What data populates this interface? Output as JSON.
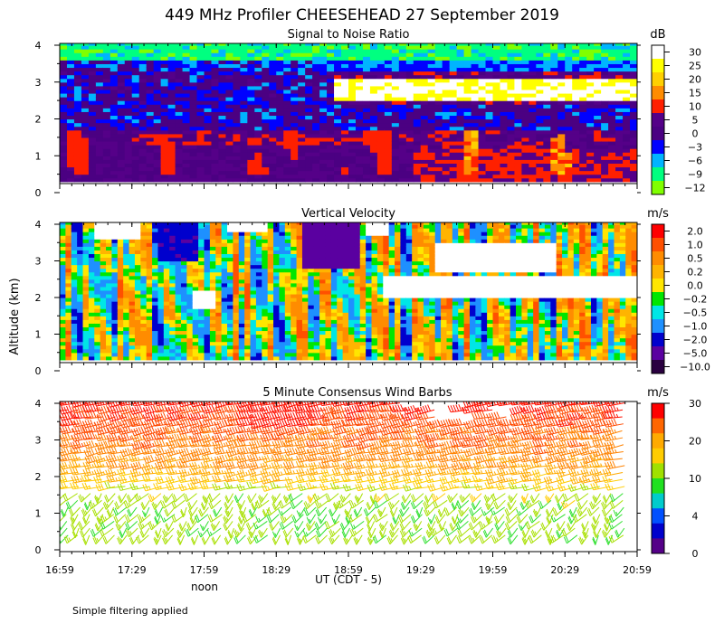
{
  "title": "449 MHz Profiler CHEESEHEAD 27 September 2019",
  "ylabel": "Altitude (km)",
  "xlabel": "UT  (CDT - 5)",
  "noon_label": "noon",
  "note": "Simple filtering applied",
  "x_ticks": [
    "16:59",
    "17:29",
    "17:59",
    "18:29",
    "18:59",
    "19:29",
    "19:59",
    "20:29",
    "20:59"
  ],
  "y_ticks": [
    "0",
    "1",
    "2",
    "3",
    "4"
  ],
  "chart_data": [
    {
      "type": "heatmap",
      "title": "Signal to Noise Ratio",
      "unit": "dB",
      "xlim": [
        "16:59",
        "20:59"
      ],
      "ylim": [
        0,
        4.1
      ],
      "y_data_range": [
        0.3,
        4.1
      ],
      "colorbar": {
        "labels": [
          "30",
          "25",
          "20",
          "15",
          "10",
          "5",
          "0",
          "−3",
          "−6",
          "−9",
          "−12"
        ],
        "colors": [
          "#ffffff",
          "#ffff00",
          "#ffd000",
          "#ff8c00",
          "#ff2000",
          "#550088",
          "#4b0082",
          "#0000ff",
          "#00b4ff",
          "#00ff80",
          "#80ff00"
        ]
      },
      "features": [
        {
          "layer": "0.3-1.6 km",
          "description": "mostly 0 to 5 dB with red/orange 10-15 dB plumes, increasing after 19:29"
        },
        {
          "layer": "1.6-2.3 km",
          "description": "-3 to 5 dB"
        },
        {
          "layer": "2.3-3.2 km after 19:29",
          "description": "white >30 dB layer"
        },
        {
          "layer": "3.5-4.1 km",
          "description": "-12 to -6 dB green"
        }
      ]
    },
    {
      "type": "heatmap",
      "title": "Vertical Velocity",
      "unit": "m/s",
      "xlim": [
        "16:59",
        "20:59"
      ],
      "ylim": [
        0,
        4.1
      ],
      "y_data_range": [
        0.3,
        4.1
      ],
      "colorbar": {
        "labels": [
          "2.0",
          "1.0",
          "0.5",
          "0.2",
          "0.0",
          "−0.2",
          "−0.5",
          "−1.0",
          "−2.0",
          "−5.0",
          "−10.0"
        ],
        "colors": [
          "#ff0000",
          "#ff5000",
          "#ff8c00",
          "#ffb400",
          "#ffe600",
          "#00e600",
          "#00e6e6",
          "#1e90ff",
          "#0000cd",
          "#5a00a0",
          "#2a0040"
        ]
      },
      "features": [
        {
          "region": "0.3-2.0 km",
          "description": "alternating up/down drafts between -1.0 and +1.0 m/s"
        },
        {
          "region": "18:29-19:05, 2.8-4.1 km",
          "description": "downward -2 to -5 m/s"
        },
        {
          "region": "19:29-20:59, 2.0-3.4 km",
          "description": "missing data (white)"
        }
      ]
    },
    {
      "type": "wind_barbs",
      "title": "5 Minute Consensus Wind Barbs",
      "unit": "m/s",
      "xlim": [
        "16:59",
        "20:59"
      ],
      "ylim": [
        0,
        4.1
      ],
      "colorbar": {
        "labels": [
          "30",
          "20",
          "10",
          "4",
          "0"
        ],
        "colors": [
          "#ff0000",
          "#ff6600",
          "#ffaa00",
          "#ffcc00",
          "#a0e000",
          "#20e020",
          "#00cccc",
          "#0050ff",
          "#0000cc",
          "#550088"
        ]
      },
      "speed_profile_m_s": [
        {
          "altitude_km": 0.4,
          "speed": 12
        },
        {
          "altitude_km": 1.0,
          "speed": 11
        },
        {
          "altitude_km": 1.6,
          "speed": 13
        },
        {
          "altitude_km": 2.2,
          "speed": 19
        },
        {
          "altitude_km": 2.8,
          "speed": 23
        },
        {
          "altitude_km": 3.4,
          "speed": 26
        },
        {
          "altitude_km": 4.0,
          "speed": 30
        }
      ]
    }
  ]
}
